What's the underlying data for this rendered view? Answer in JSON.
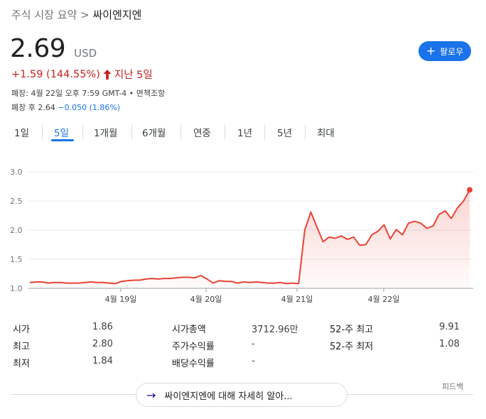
{
  "breadcrumb": {
    "parent": "주식 시장 요약",
    "separator": ">",
    "current": "싸이엔지엔"
  },
  "quote": {
    "price": "2.69",
    "currency": "USD",
    "change": "+1.59 (144.55%)",
    "period": "지난 5일",
    "close_info": "폐장: 4월 22일 오후 7:59 GMT-4 • 면책조항",
    "after_hours_label": "폐장 후 2.64",
    "after_hours_change": "−0.050 (1.86%)"
  },
  "follow_button": {
    "label": "팔로우"
  },
  "tabs": [
    {
      "label": "1일"
    },
    {
      "label": "5일",
      "active": true
    },
    {
      "label": "1개월"
    },
    {
      "label": "6개월"
    },
    {
      "label": "연중"
    },
    {
      "label": "1년"
    },
    {
      "label": "5년"
    },
    {
      "label": "최대"
    }
  ],
  "chart_data": {
    "type": "area",
    "ylim": [
      1.0,
      3.0
    ],
    "y_ticks": [
      "1.0",
      "1.5",
      "2.0",
      "2.5",
      "3.0"
    ],
    "x_labels": [
      "4월 19일",
      "4월 20일",
      "4월 21일",
      "4월 22일"
    ],
    "grid": true,
    "line_color": "#e94235",
    "series": [
      {
        "values": [
          1.1,
          1.11,
          1.11,
          1.09,
          1.1,
          1.1,
          1.09,
          1.09,
          1.09,
          1.1,
          1.11,
          1.1,
          1.1,
          1.09,
          1.08,
          1.12,
          1.13,
          1.14,
          1.14,
          1.16,
          1.17,
          1.16,
          1.17,
          1.17,
          1.18,
          1.19,
          1.19,
          1.18,
          1.22,
          1.16,
          1.09,
          1.13,
          1.12,
          1.12,
          1.09,
          1.11,
          1.1,
          1.11,
          1.1,
          1.09,
          1.09,
          1.1,
          1.08,
          1.09,
          1.08,
          2.0,
          2.31,
          2.05,
          1.8,
          1.88,
          1.86,
          1.9,
          1.84,
          1.88,
          1.74,
          1.75,
          1.92,
          1.98,
          2.09,
          1.85,
          2.01,
          1.92,
          2.12,
          2.15,
          2.12,
          2.03,
          2.07,
          2.27,
          2.33,
          2.2,
          2.38,
          2.5,
          2.69
        ]
      }
    ]
  },
  "stats": {
    "col1": [
      {
        "label": "시가",
        "value": "1.86"
      },
      {
        "label": "최고",
        "value": "2.80"
      },
      {
        "label": "최저",
        "value": "1.84"
      }
    ],
    "col2": [
      {
        "label": "시가총액",
        "value": "3712.96만"
      },
      {
        "label": "주가수익률",
        "value": "-"
      },
      {
        "label": "배당수익률",
        "value": "-"
      }
    ],
    "col3": [
      {
        "label": "52-주 최고",
        "value": "9.91"
      },
      {
        "label": "52-주 최저",
        "value": "1.08"
      }
    ]
  },
  "feedback": "피드백",
  "more_link": {
    "label": "싸이엔지엔에 대해 자세히 알아..."
  }
}
